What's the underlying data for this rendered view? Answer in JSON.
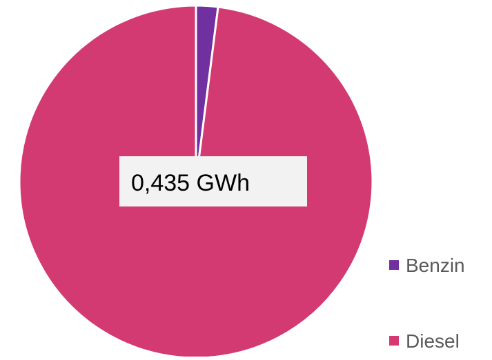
{
  "chart_data": {
    "type": "pie",
    "title": "",
    "categories": [
      "Benzin",
      "Diesel"
    ],
    "values": [
      2.0,
      98.0
    ],
    "colors": [
      "#7030A0",
      "#D33A72"
    ],
    "legend": {
      "position": "right",
      "entries": [
        "Benzin",
        "Diesel"
      ]
    },
    "annotation": "0,435 GWh"
  }
}
